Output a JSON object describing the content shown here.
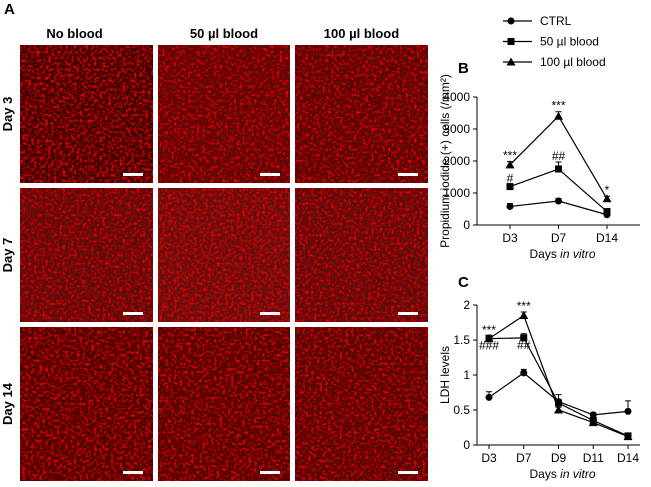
{
  "panel_a": {
    "label": "A",
    "columns": [
      "No blood",
      "50 µl  blood",
      "100 µl  blood"
    ],
    "rows": [
      "Day 3",
      "Day 7",
      "Day 14"
    ]
  },
  "chart_data": [
    {
      "type": "line",
      "label": "B",
      "ylabel": "Propidium iodide (+) cells (/mm²)",
      "xlabel": {
        "text": "Days",
        "italic": "in vitro"
      },
      "categories": [
        "D3",
        "D7",
        "D14"
      ],
      "ylim": [
        0,
        4000
      ],
      "yticks": [
        0,
        1000,
        2000,
        3000,
        4000
      ],
      "series": [
        {
          "name": "CTRL",
          "color": "#000000",
          "marker": "circle",
          "values": [
            580,
            750,
            320
          ],
          "errors": [
            90,
            80,
            60
          ]
        },
        {
          "name": "50 µl blood",
          "color": "#000000",
          "marker": "square",
          "values": [
            1200,
            1750,
            420
          ],
          "errors": [
            60,
            220,
            60
          ]
        },
        {
          "name": "100 µl blood",
          "color": "#000000",
          "marker": "triangle",
          "values": [
            1880,
            3400,
            820
          ],
          "errors": [
            100,
            140,
            80
          ]
        }
      ],
      "annotations": [
        {
          "text": "***",
          "category": "D3",
          "series": 2,
          "placement": "above"
        },
        {
          "text": "#",
          "category": "D3",
          "series": 1,
          "placement": "above"
        },
        {
          "text": "***",
          "category": "D7",
          "series": 2,
          "placement": "above"
        },
        {
          "text": "##",
          "category": "D7",
          "series": 1,
          "placement": "above"
        },
        {
          "text": "*",
          "category": "D14",
          "series": 2,
          "placement": "above"
        }
      ]
    },
    {
      "type": "line",
      "label": "C",
      "ylabel": "LDH levels",
      "xlabel": {
        "text": "Days",
        "italic": "in vitro"
      },
      "categories": [
        "D3",
        "D7",
        "D9",
        "D11",
        "D14"
      ],
      "ylim": [
        0,
        2
      ],
      "yticks": [
        0,
        0.5,
        1,
        1.5,
        2
      ],
      "series": [
        {
          "color": "#000000",
          "marker": "circle",
          "values": [
            0.68,
            1.03,
            0.62,
            0.43,
            0.48
          ],
          "errors": [
            0.08,
            0.05,
            0.1,
            0.03,
            0.15
          ]
        },
        {
          "color": "#000000",
          "marker": "square",
          "values": [
            1.52,
            1.53,
            0.6,
            0.35,
            0.13
          ],
          "errors": [
            0.05,
            0.06,
            0.05,
            0.03,
            0.02
          ]
        },
        {
          "color": "#000000",
          "marker": "triangle",
          "values": [
            1.52,
            1.85,
            0.5,
            0.32,
            0.12
          ],
          "errors": [
            0.04,
            0.05,
            0.04,
            0.03,
            0.02
          ]
        }
      ],
      "annotations": [
        {
          "text": "***",
          "category": "D3",
          "series": 2,
          "placement": "above"
        },
        {
          "text": "###",
          "category": "D3",
          "series": 1,
          "placement": "below"
        },
        {
          "text": "***",
          "category": "D7",
          "series": 2,
          "placement": "above"
        },
        {
          "text": "##",
          "category": "D7",
          "series": 1,
          "placement": "below"
        }
      ]
    }
  ]
}
